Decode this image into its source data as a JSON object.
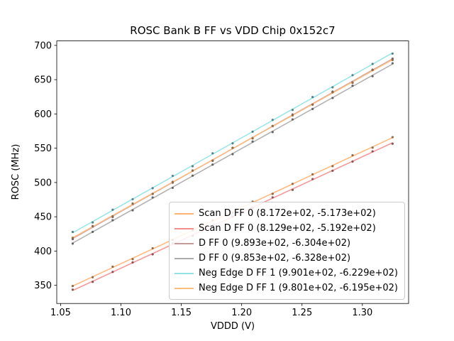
{
  "chart_data": {
    "type": "line",
    "title": "ROSC Bank B FF vs VDD Chip 0x152c7",
    "xlabel": "VDDD (V)",
    "ylabel": "ROSC (MHz)",
    "xlim": [
      1.0468,
      1.3383
    ],
    "ylim": [
      323.5,
      706.5
    ],
    "xticks": [
      "1.05",
      "1.10",
      "1.15",
      "1.20",
      "1.25",
      "1.30"
    ],
    "yticks": [
      "350",
      "400",
      "450",
      "500",
      "550",
      "600",
      "650",
      "700"
    ],
    "x_points": {
      "start": 1.06,
      "end": 1.325,
      "count": 17
    },
    "grid": false,
    "legend_position": "lower right",
    "series": [
      {
        "label": "Scan D FF 0 (8.172e+02, -5.173e+02)",
        "slope": 817.2,
        "intercept": -517.3,
        "color": "#ffb271"
      },
      {
        "label": "Scan D FF 0 (8.129e+02, -5.192e+02)",
        "slope": 812.9,
        "intercept": -519.2,
        "color": "#f28e8e"
      },
      {
        "label": "D FF 0 (9.893e+02, -6.304e+02)",
        "slope": 989.3,
        "intercept": -630.4,
        "color": "#c49a9a"
      },
      {
        "label": "D FF 0 (9.853e+02, -6.328e+02)",
        "slope": 985.3,
        "intercept": -632.8,
        "color": "#ababab"
      },
      {
        "label": "Neg Edge D FF 1 (9.901e+02, -6.229e+02)",
        "slope": 990.1,
        "intercept": -622.9,
        "color": "#90e2e5"
      },
      {
        "label": "Neg Edge D FF 1 (9.801e+02, -6.195e+02)",
        "slope": 980.1,
        "intercept": -619.5,
        "color": "#ffbd80"
      }
    ]
  }
}
